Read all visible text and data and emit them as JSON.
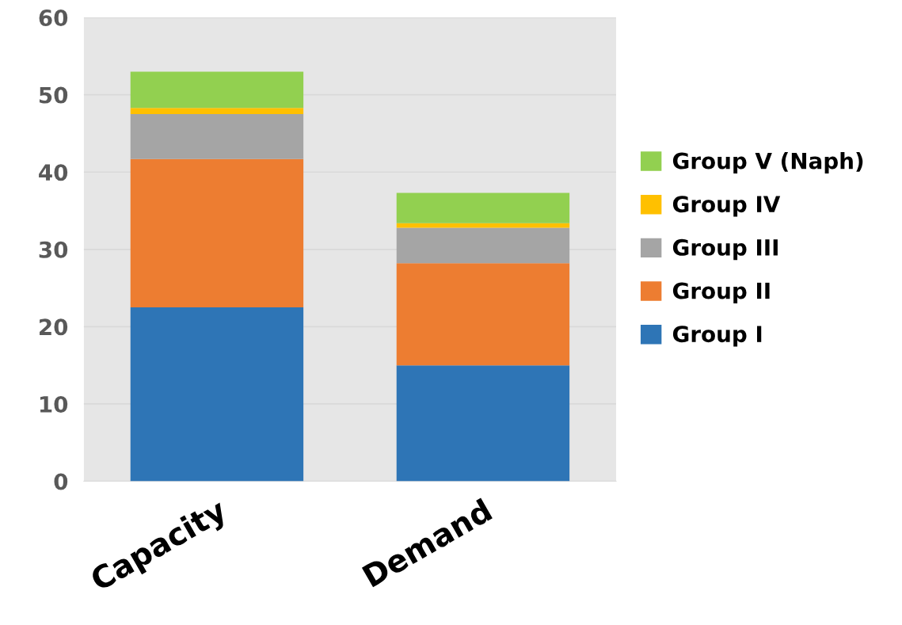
{
  "chart_data": {
    "type": "bar",
    "stacked": true,
    "categories": [
      "Capacity",
      "Demand"
    ],
    "series": [
      {
        "name": "Group I",
        "color": "#2e75b6",
        "values": [
          22.5,
          15.0
        ]
      },
      {
        "name": "Group II",
        "color": "#ed7d31",
        "values": [
          19.2,
          13.2
        ]
      },
      {
        "name": "Group III",
        "color": "#a5a5a5",
        "values": [
          5.8,
          4.6
        ]
      },
      {
        "name": "Group IV",
        "color": "#ffc000",
        "values": [
          0.8,
          0.6
        ]
      },
      {
        "name": "Group V (Naph)",
        "color": "#92d050",
        "values": [
          4.7,
          3.9
        ]
      }
    ],
    "ylim": [
      0,
      60
    ],
    "yticks": [
      0,
      10,
      20,
      30,
      40,
      50,
      60
    ],
    "grid": "y",
    "legend": "right"
  }
}
